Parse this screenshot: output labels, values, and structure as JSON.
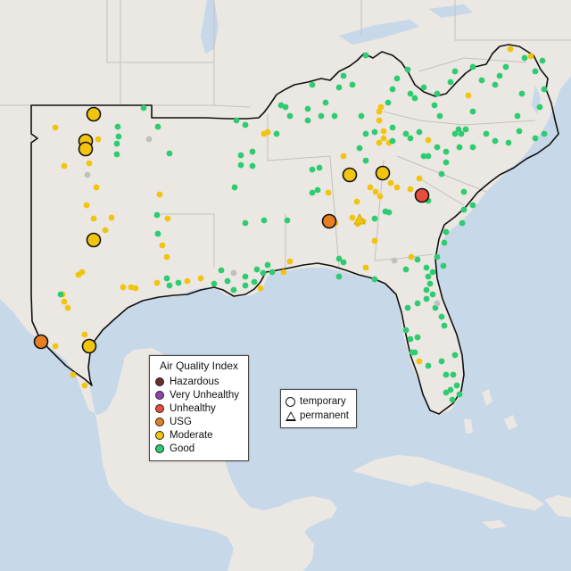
{
  "map": {
    "colors": {
      "land": "#ebe7e3",
      "water": "#c7d8e8",
      "state_line": "#b9b5b1",
      "boundary": "#111111",
      "good": "#2ecc71",
      "moderate": "#f1c40f",
      "usg": "#e67e22",
      "unhealthy": "#e74c3c",
      "very_unhealthy": "#8e44ad",
      "hazardous": "#6e2c2c",
      "no_data": "#c0c0c0"
    },
    "site_counts_note_none": ""
  },
  "legend": {
    "title": "Air Quality Index",
    "categories": [
      {
        "label": "Hazardous",
        "color": "#6e2c2c"
      },
      {
        "label": "Very Unhealthy",
        "color": "#8e44ad"
      },
      {
        "label": "Unhealthy",
        "color": "#e74c3c"
      },
      {
        "label": "USG",
        "color": "#e67e22"
      },
      {
        "label": "Moderate",
        "color": "#f1c40f"
      },
      {
        "label": "Good",
        "color": "#2ecc71"
      }
    ]
  },
  "shape_legend": {
    "temporary": "temporary",
    "permanent": "permanent"
  },
  "stations": {
    "large": [
      {
        "category": "moderate"
      },
      {
        "category": "moderate"
      },
      {
        "category": "moderate"
      },
      {
        "category": "moderate"
      },
      {
        "category": "moderate"
      },
      {
        "category": "moderate"
      },
      {
        "category": "moderate"
      },
      {
        "category": "unhealthy"
      },
      {
        "category": "usg"
      },
      {
        "category": "usg"
      }
    ]
  }
}
